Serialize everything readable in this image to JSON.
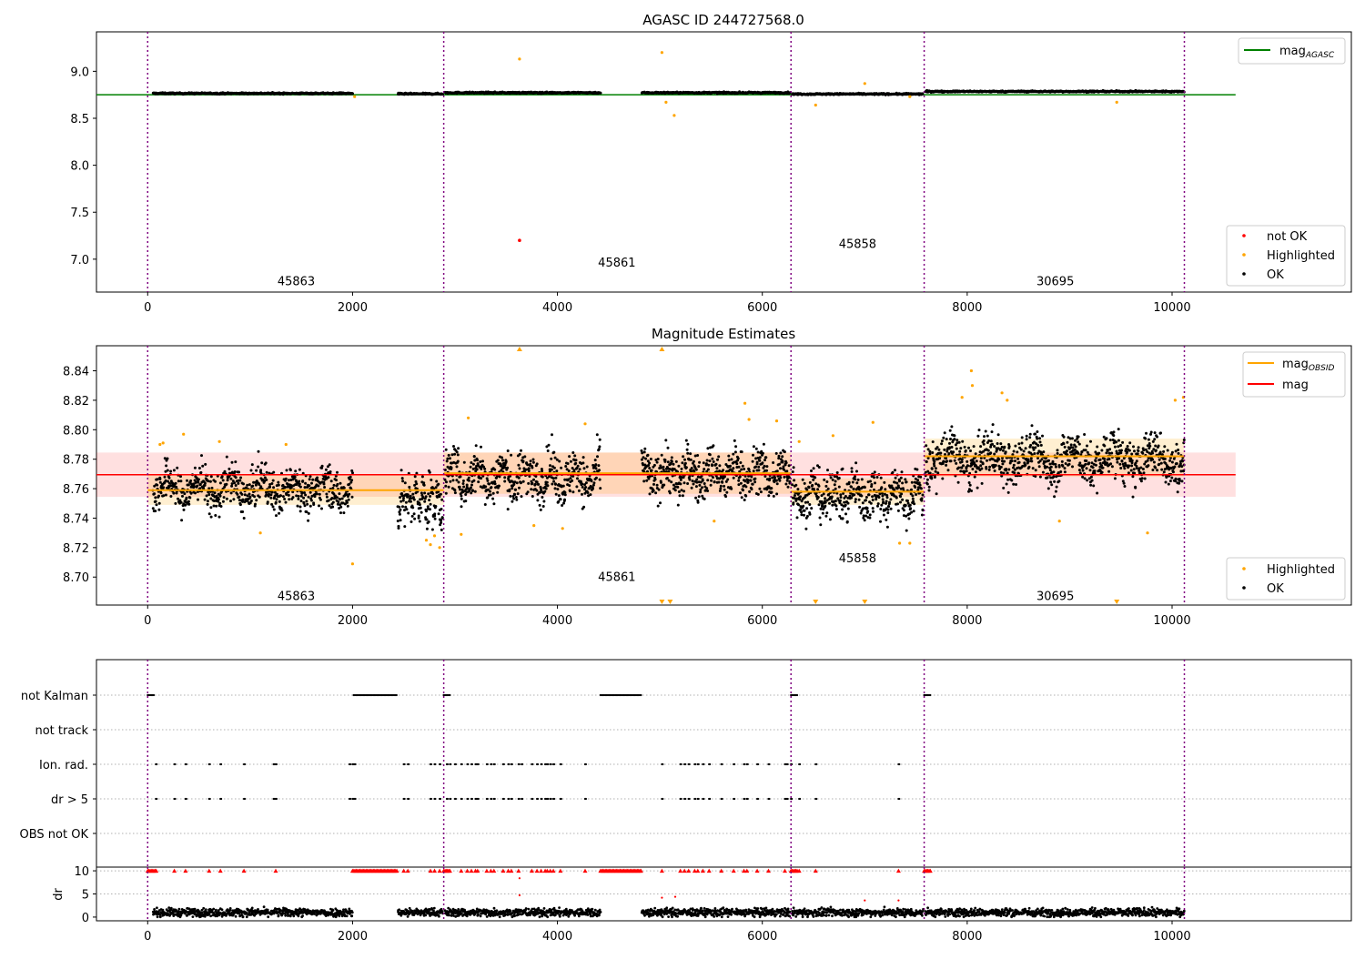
{
  "chart_data": [
    {
      "type": "scatter",
      "title": "AGASC ID 244727568.0",
      "xlabel": "",
      "ylabel": "",
      "xlim": [
        -500,
        11750
      ],
      "ylim": [
        6.65,
        9.42
      ],
      "x_ticks": [
        0,
        2000,
        4000,
        6000,
        8000,
        10000
      ],
      "y_ticks": [
        9.0,
        8.5,
        8.0,
        7.5,
        7.0
      ],
      "obsid_boundaries": [
        0,
        2890,
        6280,
        7580,
        10120
      ],
      "obsid_labels": [
        {
          "label": "45863",
          "x": 1450,
          "y": 6.77
        },
        {
          "label": "45861",
          "x": 4580,
          "y": 6.97
        },
        {
          "label": "45858",
          "x": 6930,
          "y": 7.17
        },
        {
          "label": "30695",
          "x": 8860,
          "y": 6.77
        }
      ],
      "mag_agasc": {
        "value": 8.75,
        "x": [
          -500,
          10620
        ]
      },
      "segments": [
        {
          "x": [
            50,
            2000
          ],
          "mag": 8.765
        },
        {
          "x": [
            2440,
            2880
          ],
          "mag": 8.76
        },
        {
          "x": [
            2900,
            4420
          ],
          "mag": 8.772
        },
        {
          "x": [
            4820,
            6270
          ],
          "mag": 8.772
        },
        {
          "x": [
            6290,
            7570
          ],
          "mag": 8.758
        },
        {
          "x": [
            7590,
            10120
          ],
          "mag": 8.785
        }
      ],
      "highlighted_points": [
        [
          3630,
          9.13
        ],
        [
          5020,
          9.2
        ],
        [
          5060,
          8.67
        ],
        [
          5140,
          8.53
        ],
        [
          6520,
          8.64
        ],
        [
          7000,
          8.87
        ],
        [
          9460,
          8.67
        ],
        [
          2020,
          8.73
        ],
        [
          7440,
          8.73
        ]
      ],
      "not_ok_points": [
        [
          3630,
          7.2
        ]
      ],
      "legend_lines": [
        {
          "name": "mag",
          "sub": "AGASC",
          "color": "#008000"
        }
      ],
      "legend_points": [
        {
          "name": "not OK",
          "color": "#ff0000"
        },
        {
          "name": "Highlighted",
          "color": "#ffa500"
        },
        {
          "name": "OK",
          "color": "#000000"
        }
      ],
      "legend_placement": "top-right / bottom-right"
    },
    {
      "type": "scatter",
      "title": "Magnitude Estimates",
      "xlabel": "",
      "ylabel": "",
      "xlim": [
        -500,
        11750
      ],
      "ylim": [
        8.681,
        8.857
      ],
      "x_ticks": [
        0,
        2000,
        4000,
        6000,
        8000,
        10000
      ],
      "y_ticks": [
        8.84,
        8.82,
        8.8,
        8.78,
        8.76,
        8.74,
        8.72,
        8.7
      ],
      "obsid_boundaries": [
        0,
        2890,
        6280,
        7580,
        10120
      ],
      "obsid_labels": [
        {
          "label": "45863",
          "x": 1450,
          "y": 8.6875
        },
        {
          "label": "45861",
          "x": 4580,
          "y": 8.7003
        },
        {
          "label": "45858",
          "x": 6930,
          "y": 8.7132
        },
        {
          "label": "30695",
          "x": 8860,
          "y": 8.6875
        }
      ],
      "mag": {
        "value": 8.7695,
        "band": [
          8.7545,
          8.7845
        ],
        "x": [
          -500,
          10620
        ]
      },
      "mag_obsid": [
        {
          "x": [
            0,
            2890
          ],
          "value": 8.759,
          "band": [
            8.749,
            8.769
          ]
        },
        {
          "x": [
            2890,
            6280
          ],
          "value": 8.7705,
          "band": [
            8.7565,
            8.7845
          ]
        },
        {
          "x": [
            6280,
            7580
          ],
          "value": 8.758,
          "band": [
            8.749,
            8.767
          ]
        },
        {
          "x": [
            7580,
            10120
          ],
          "value": 8.782,
          "band": [
            8.768,
            8.794
          ]
        }
      ],
      "segments": [
        {
          "x": [
            50,
            2000
          ],
          "mean": 8.76,
          "spread": 0.007
        },
        {
          "x": [
            2440,
            2880
          ],
          "mean": 8.752,
          "spread": 0.008
        },
        {
          "x": [
            2900,
            4420
          ],
          "mean": 8.768,
          "spread": 0.008
        },
        {
          "x": [
            4820,
            6270
          ],
          "mean": 8.77,
          "spread": 0.008
        },
        {
          "x": [
            6290,
            7570
          ],
          "mean": 8.756,
          "spread": 0.008
        },
        {
          "x": [
            7590,
            10120
          ],
          "mean": 8.78,
          "spread": 0.008
        }
      ],
      "highlighted_points": [
        [
          120,
          8.79
        ],
        [
          150,
          8.791
        ],
        [
          350,
          8.797
        ],
        [
          700,
          8.792
        ],
        [
          1100,
          8.73
        ],
        [
          1350,
          8.79
        ],
        [
          2000,
          8.709
        ],
        [
          2720,
          8.725
        ],
        [
          2760,
          8.722
        ],
        [
          2800,
          8.728
        ],
        [
          2850,
          8.72
        ],
        [
          3060,
          8.729
        ],
        [
          3130,
          8.808
        ],
        [
          3770,
          8.735
        ],
        [
          4050,
          8.733
        ],
        [
          4270,
          8.804
        ],
        [
          5530,
          8.738
        ],
        [
          5830,
          8.818
        ],
        [
          5870,
          8.807
        ],
        [
          6140,
          8.806
        ],
        [
          6360,
          8.792
        ],
        [
          6690,
          8.796
        ],
        [
          7080,
          8.805
        ],
        [
          7340,
          8.723
        ],
        [
          7440,
          8.723
        ],
        [
          7950,
          8.822
        ],
        [
          8040,
          8.84
        ],
        [
          8050,
          8.83
        ],
        [
          8340,
          8.825
        ],
        [
          8390,
          8.82
        ],
        [
          8900,
          8.738
        ],
        [
          9760,
          8.73
        ],
        [
          10030,
          8.82
        ],
        [
          10110,
          8.822
        ]
      ],
      "clipped_up": [
        3630,
        5020
      ],
      "clipped_down": [
        5020,
        5100,
        6520,
        7000,
        9460
      ],
      "legend_lines": [
        {
          "name": "mag",
          "sub": "OBSID",
          "color": "#ffa500"
        },
        {
          "name": "mag",
          "sub": "",
          "color": "#ff0000"
        }
      ],
      "legend_points": [
        {
          "name": "Highlighted",
          "color": "#ffa500"
        },
        {
          "name": "OK",
          "color": "#000000"
        }
      ],
      "legend_placement": "top-right / bottom-right"
    },
    {
      "type": "scatter",
      "title": "",
      "xlabel": "",
      "ylabel": "",
      "xlim": [
        -500,
        11750
      ],
      "flag_rows": [
        "not Kalman",
        "not track",
        "Ion. rad.",
        "dr > 5",
        "OBS not OK"
      ],
      "flags": {
        "not Kalman": [
          [
            0,
            70
          ],
          [
            2010,
            2440
          ],
          [
            2890,
            2960
          ],
          [
            4420,
            4820
          ],
          [
            6280,
            6350
          ],
          [
            7580,
            7650
          ]
        ],
        "not track": [],
        "Ion. rad.": [
          80,
          260,
          370,
          600,
          710,
          940,
          1230,
          1250,
          1970,
          2000,
          2020,
          2500,
          2540,
          2760,
          2800,
          2850,
          2920,
          2950,
          3000,
          3060,
          3120,
          3160,
          3200,
          3220,
          3310,
          3350,
          3380,
          3470,
          3520,
          3550,
          3620,
          3650,
          3750,
          3800,
          3840,
          3880,
          3900,
          3930,
          3960,
          4030,
          4270,
          5020,
          5200,
          5240,
          5280,
          5340,
          5370,
          5420,
          5480,
          5600,
          5720,
          5820,
          5850,
          5950,
          6060,
          6220,
          6240,
          6280,
          6360,
          6520,
          7330
        ],
        "dr > 5": [
          80,
          260,
          370,
          600,
          710,
          940,
          1230,
          1250,
          1970,
          2000,
          2020,
          2500,
          2540,
          2760,
          2800,
          2850,
          2920,
          2950,
          3000,
          3060,
          3120,
          3160,
          3200,
          3220,
          3310,
          3350,
          3380,
          3470,
          3520,
          3550,
          3620,
          3650,
          3750,
          3800,
          3840,
          3880,
          3900,
          3930,
          3960,
          4030,
          4270,
          5020,
          5200,
          5240,
          5280,
          5340,
          5370,
          5420,
          5480,
          5600,
          5720,
          5820,
          5850,
          5950,
          6060,
          6220,
          6240,
          6280,
          6360,
          6520,
          7330
        ],
        "OBS not OK": []
      },
      "obsid_boundaries": [
        0,
        2890,
        6280,
        7580,
        10120
      ]
    },
    {
      "type": "scatter",
      "title": "",
      "xlabel": "",
      "ylabel": "dr",
      "xlim": [
        -500,
        11750
      ],
      "ylim": [
        -0.8,
        10.8
      ],
      "x_ticks": [
        0,
        2000,
        4000,
        6000,
        8000,
        10000
      ],
      "y_ticks": [
        10,
        5,
        0
      ],
      "clip_value": 10,
      "dr_mean": 1.0,
      "segments": [
        [
          50,
          2000
        ],
        [
          2440,
          2880
        ],
        [
          2900,
          4420
        ],
        [
          4820,
          6270
        ],
        [
          6290,
          7570
        ],
        [
          7590,
          10120
        ]
      ],
      "large_dr_points": [
        [
          3630,
          8.4
        ],
        [
          3630,
          4.7
        ],
        [
          5020,
          4.2
        ],
        [
          5150,
          4.4
        ],
        [
          7000,
          3.6
        ],
        [
          7330,
          3.6
        ]
      ],
      "clipped_ranges": [
        [
          0,
          90
        ],
        [
          2000,
          2440
        ],
        [
          2890,
          2960
        ],
        [
          4420,
          4820
        ],
        [
          6280,
          6350
        ],
        [
          7580,
          7650
        ]
      ],
      "clipped_points": [
        260,
        370,
        600,
        710,
        940,
        1250,
        2500,
        2540,
        2760,
        2800,
        2850,
        3060,
        3120,
        3160,
        3200,
        3220,
        3310,
        3350,
        3380,
        3470,
        3520,
        3550,
        3620,
        3750,
        3800,
        3840,
        3880,
        3900,
        3930,
        3960,
        4030,
        4270,
        5020,
        5200,
        5240,
        5280,
        5340,
        5370,
        5420,
        5480,
        5600,
        5720,
        5820,
        5850,
        5950,
        6060,
        6220,
        6360,
        6520,
        7330
      ]
    }
  ]
}
